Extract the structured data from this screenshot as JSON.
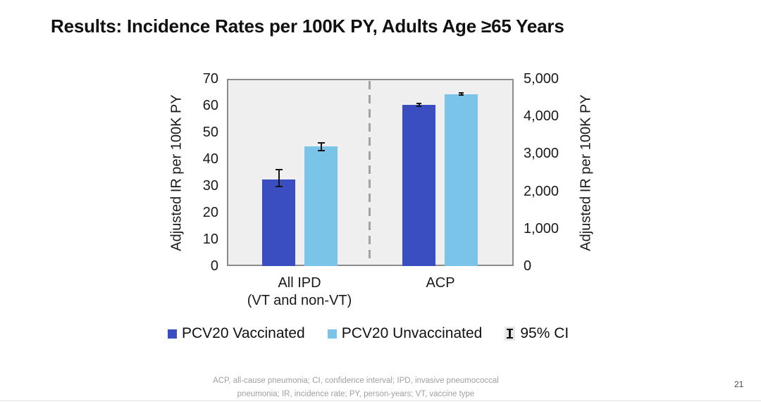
{
  "slide": {
    "title": "Results: Incidence Rates per 100K PY, Adults Age ≥65 Years",
    "page_number": "21",
    "footnote_line1": "ACP, all-cause pneumonia; CI, confidence interval; IPD, invasive pneumococcal",
    "footnote_line2": "pneumonia; IR, incidence rate; PY, person-years; VT, vaccine type"
  },
  "chart_data": {
    "type": "bar",
    "subtype": "grouped bars, dual y-axes, dashed divider between category groups",
    "title": "",
    "categories": [
      "All IPD (VT and non-VT)",
      "ACP"
    ],
    "categories_display": [
      {
        "line1": "All IPD",
        "line2": "(VT and non-VT)"
      },
      {
        "line1": "ACP",
        "line2": ""
      }
    ],
    "series": [
      {
        "name": "PCV20 Vaccinated",
        "color": "#3B4EC1"
      },
      {
        "name": "PCV20 Unvaccinated",
        "color": "#7AC3E9"
      }
    ],
    "left_axis": {
      "label": "Adjusted IR per 100K PY",
      "range": [
        0,
        70
      ],
      "ticks": [
        0,
        10,
        20,
        30,
        40,
        50,
        60,
        70
      ]
    },
    "right_axis": {
      "label": "Adjusted IR per 100K PY",
      "range": [
        0,
        5000
      ],
      "tick_labels": [
        "0",
        "1,000",
        "2,000",
        "3,000",
        "4,000",
        "5,000"
      ]
    },
    "bars": [
      {
        "category": "All IPD (VT and non-VT)",
        "series": "PCV20 Vaccinated",
        "axis": "left",
        "value": 32.5,
        "ci": [
          29.5,
          36.2
        ]
      },
      {
        "category": "All IPD (VT and non-VT)",
        "series": "PCV20 Unvaccinated",
        "axis": "left",
        "value": 44.8,
        "ci": [
          43.0,
          46.3
        ]
      },
      {
        "category": "ACP",
        "series": "PCV20 Vaccinated",
        "axis": "right",
        "value": 4300,
        "ci": [
          4240,
          4360
        ]
      },
      {
        "category": "ACP",
        "series": "PCV20 Unvaccinated",
        "axis": "right",
        "value": 4590,
        "ci": [
          4540,
          4640
        ]
      }
    ],
    "legend": [
      {
        "label": "PCV20 Vaccinated",
        "type": "swatch",
        "color": "#3B4EC1"
      },
      {
        "label": "PCV20 Unvaccinated",
        "type": "swatch",
        "color": "#7AC3E9"
      },
      {
        "label": "95% CI",
        "type": "errorbar"
      }
    ],
    "plot_background": "#efefef",
    "grid": false,
    "legend_position": "bottom"
  }
}
